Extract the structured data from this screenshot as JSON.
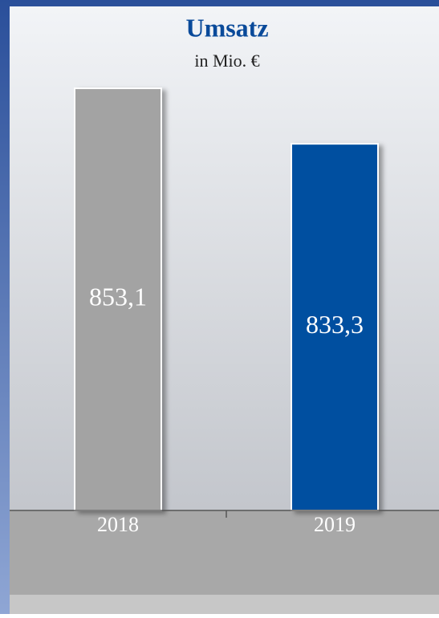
{
  "chart_data": {
    "type": "bar",
    "title": "Umsatz",
    "subtitle": "in Mio. €",
    "categories": [
      "2018",
      "2019"
    ],
    "series": [
      {
        "name": null,
        "values": [
          853.1,
          833.3
        ],
        "value_labels": [
          "853,1",
          "833,3"
        ],
        "colors": [
          "#a3a3a3",
          "#0050a0"
        ]
      }
    ],
    "ylim": [
      702.5,
      870
    ]
  }
}
